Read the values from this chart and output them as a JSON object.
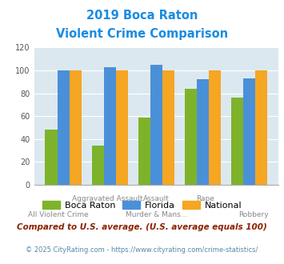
{
  "title_line1": "2019 Boca Raton",
  "title_line2": "Violent Crime Comparison",
  "boca_raton": [
    48,
    34,
    59,
    84,
    76
  ],
  "florida": [
    100,
    103,
    105,
    92,
    93
  ],
  "national": [
    100,
    100,
    100,
    100,
    100
  ],
  "color_boca": "#7db32b",
  "color_florida": "#4a90d9",
  "color_national": "#f5a623",
  "ylim": [
    0,
    120
  ],
  "yticks": [
    0,
    20,
    40,
    60,
    80,
    100,
    120
  ],
  "bg_color": "#dce8ef",
  "title_color": "#1a8ce0",
  "x_labels_top": [
    "",
    "Aggravated Assault",
    "Assault",
    "Rape",
    ""
  ],
  "x_labels_bot": [
    "All Violent Crime",
    "",
    "Murder & Mans...",
    "",
    "Robbery"
  ],
  "footnote1": "Compared to U.S. average. (U.S. average equals 100)",
  "footnote2": "© 2025 CityRating.com - https://www.cityrating.com/crime-statistics/",
  "footnote1_color": "#8b2200",
  "footnote2_color": "#5588aa"
}
